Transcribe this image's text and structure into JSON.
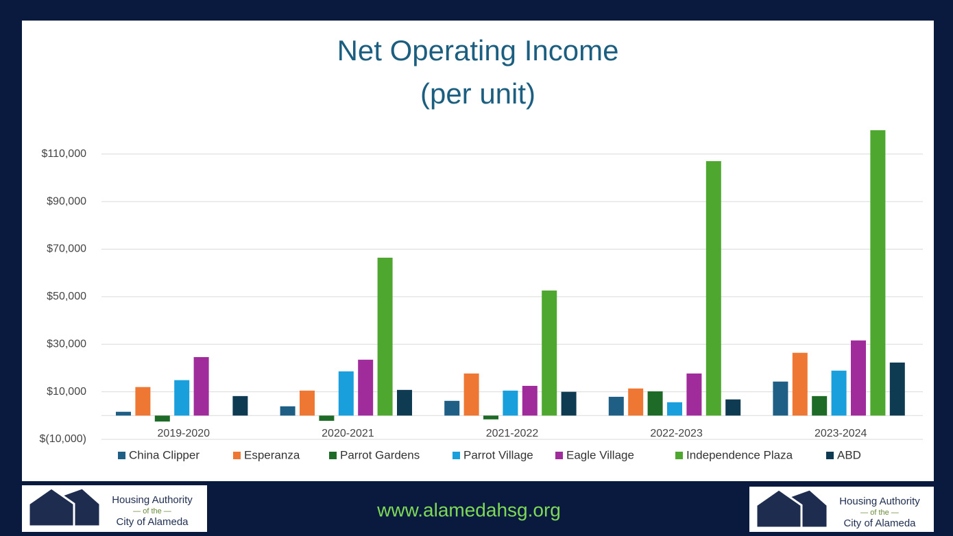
{
  "chart_data": {
    "type": "bar",
    "title": "Net Operating Income",
    "subtitle": "(per unit)",
    "categories": [
      "2019-2020",
      "2020-2021",
      "2021-2022",
      "2022-2023",
      "2023-2024"
    ],
    "series": [
      {
        "name": "China Clipper",
        "color": "#1f5f86",
        "values": [
          1600,
          3900,
          6200,
          7900,
          14300
        ]
      },
      {
        "name": "Esperanza",
        "color": "#ee7733",
        "values": [
          12000,
          10500,
          17700,
          11400,
          26400
        ]
      },
      {
        "name": "Parrot Gardens",
        "color": "#1e6b28",
        "values": [
          -2500,
          -2200,
          -1600,
          10200,
          8200
        ]
      },
      {
        "name": "Parrot Village",
        "color": "#19a0dc",
        "values": [
          14900,
          18600,
          10500,
          5600,
          18900
        ]
      },
      {
        "name": "Eagle Village",
        "color": "#a02c9c",
        "values": [
          24600,
          23500,
          12500,
          17700,
          31600
        ]
      },
      {
        "name": "Independence Plaza",
        "color": "#4ea72e",
        "values": [
          null,
          66400,
          52600,
          107000,
          120000
        ]
      },
      {
        "name": "ABD",
        "color": "#0e3a52",
        "values": [
          8200,
          10800,
          10000,
          6800,
          22300
        ]
      }
    ],
    "ylim": [
      -10000,
      120000
    ],
    "yticks": [
      {
        "value": -10000,
        "label": "$(10,000)"
      },
      {
        "value": 10000,
        "label": "$10,000"
      },
      {
        "value": 30000,
        "label": "$30,000"
      },
      {
        "value": 50000,
        "label": "$50,000"
      },
      {
        "value": 70000,
        "label": "$70,000"
      },
      {
        "value": 90000,
        "label": "$90,000"
      },
      {
        "value": 110000,
        "label": "$110,000"
      }
    ],
    "grid": true,
    "legend": "bottom"
  },
  "footer": {
    "logo": {
      "line1": "Housing Authority",
      "line2": "— of the —",
      "line3": "City of Alameda"
    },
    "url": "www.alamedahsg.org"
  }
}
